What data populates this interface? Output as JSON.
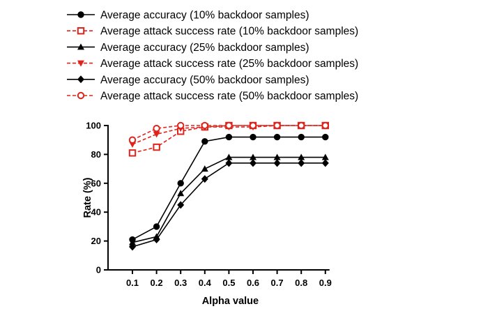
{
  "chart_data": {
    "type": "line",
    "xlabel": "Alpha value",
    "ylabel": "Rate (%)",
    "x": [
      0.1,
      0.2,
      0.3,
      0.4,
      0.5,
      0.6,
      0.7,
      0.8,
      0.9
    ],
    "x_tick_labels": [
      "0.1",
      "0.2",
      "0.3",
      "0.4",
      "0.5",
      "0.6",
      "0.7",
      "0.8",
      "0.9"
    ],
    "ylim": [
      0,
      100
    ],
    "y_ticks": [
      0,
      20,
      40,
      60,
      80,
      100
    ],
    "y_tick_labels": [
      "0",
      "20",
      "40",
      "60",
      "80",
      "100"
    ],
    "grid": false,
    "legend_position": "top",
    "series": [
      {
        "name": "Average accuracy (10% backdoor samples)",
        "color": "#000000",
        "marker": "circle-filled",
        "dashed": false,
        "values": [
          21,
          30,
          60,
          89,
          92,
          92,
          92,
          92,
          92
        ]
      },
      {
        "name": "Average attack success rate (10% backdoor samples)",
        "color": "#e0231b",
        "marker": "square-open",
        "dashed": true,
        "values": [
          81,
          85,
          96,
          99,
          100,
          100,
          100,
          100,
          100
        ]
      },
      {
        "name": "Average accuracy (25% backdoor samples)",
        "color": "#000000",
        "marker": "triangle-up-filled",
        "dashed": false,
        "values": [
          19,
          23,
          53,
          70,
          78,
          78,
          78,
          78,
          78
        ]
      },
      {
        "name": "Average attack success rate (25% backdoor samples)",
        "color": "#e0231b",
        "marker": "triangle-down-filled",
        "dashed": true,
        "values": [
          87,
          94,
          98,
          99,
          99,
          99,
          100,
          100,
          100
        ]
      },
      {
        "name": "Average accuracy (50% backdoor samples)",
        "color": "#000000",
        "marker": "diamond-filled",
        "dashed": false,
        "values": [
          16,
          21,
          45,
          63,
          74,
          74,
          74,
          74,
          74
        ]
      },
      {
        "name": "Average attack success rate (50% backdoor samples)",
        "color": "#e0231b",
        "marker": "circle-open",
        "dashed": true,
        "values": [
          90,
          98,
          100,
          100,
          100,
          100,
          100,
          100,
          100
        ]
      }
    ]
  }
}
